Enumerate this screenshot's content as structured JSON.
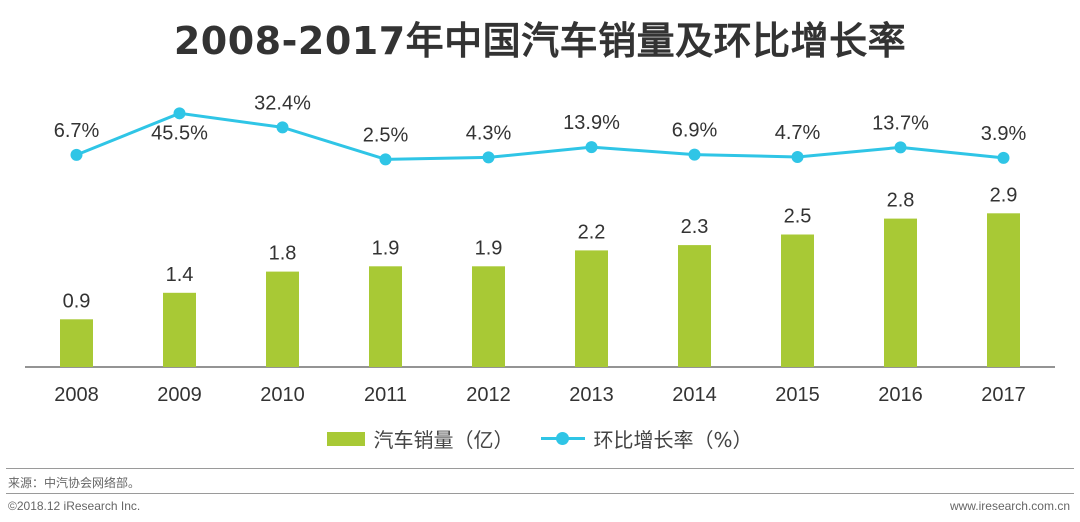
{
  "title": "2008-2017年中国汽车销量及环比增长率",
  "colors": {
    "bar": "#a8c935",
    "line": "#2fc5e6",
    "axis": "#555555"
  },
  "chart_data": {
    "type": "bar",
    "categories": [
      "2008",
      "2009",
      "2010",
      "2011",
      "2012",
      "2013",
      "2014",
      "2015",
      "2016",
      "2017"
    ],
    "series": [
      {
        "name": "汽车销量（亿）",
        "type": "bar",
        "values": [
          0.9,
          1.4,
          1.8,
          1.9,
          1.9,
          2.2,
          2.3,
          2.5,
          2.8,
          2.9
        ],
        "labels": [
          "0.9",
          "1.4",
          "1.8",
          "1.9",
          "1.9",
          "2.2",
          "2.3",
          "2.5",
          "2.8",
          "2.9"
        ]
      },
      {
        "name": "环比增长率（%）",
        "type": "line",
        "values": [
          6.7,
          45.5,
          32.4,
          2.5,
          4.3,
          13.9,
          6.9,
          4.7,
          13.7,
          3.9
        ],
        "labels": [
          "6.7%",
          "45.5%",
          "32.4%",
          "2.5%",
          "4.3%",
          "13.9%",
          "6.9%",
          "4.7%",
          "13.7%",
          "3.9%"
        ]
      }
    ],
    "legend": "bottom",
    "grid": false
  },
  "legend": {
    "bar_label": "汽车销量（亿）",
    "line_label": "环比增长率（%）"
  },
  "footer": {
    "source": "来源：中汽协会网络部。",
    "copyright": "©2018.12 iResearch Inc.",
    "website": "www.iresearch.com.cn"
  }
}
